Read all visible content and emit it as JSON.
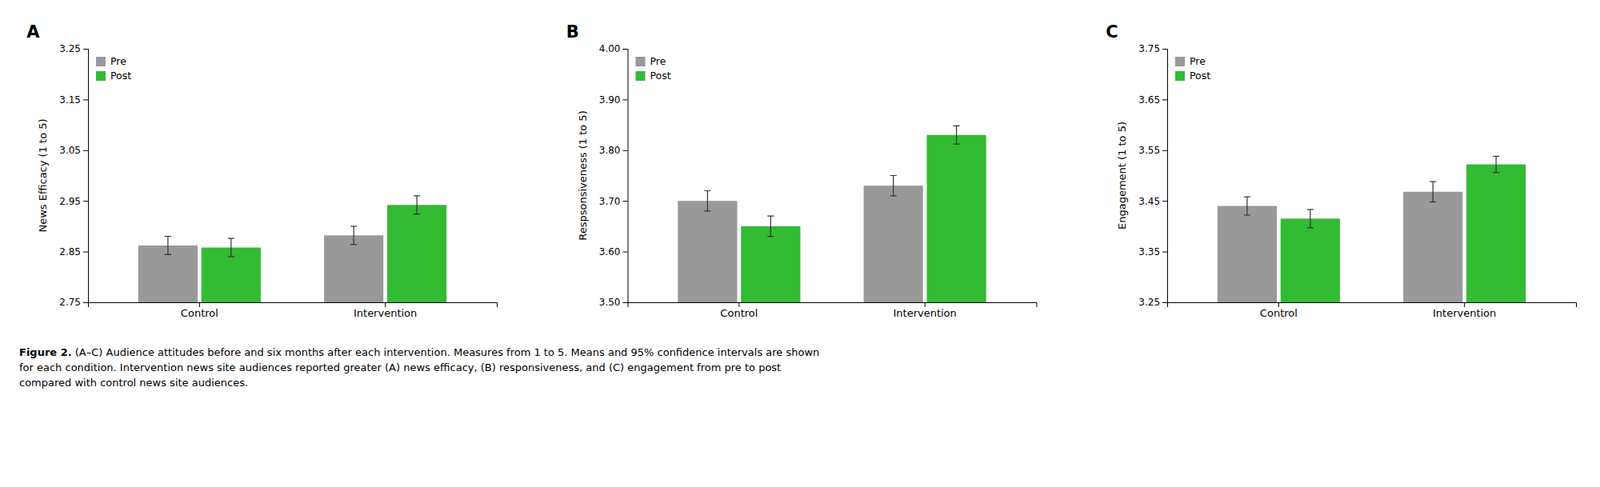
{
  "chart_data": [
    {
      "type": "bar",
      "title": "A",
      "ylabel": "News Efficacy (1 to 5)",
      "categories": [
        "Control",
        "Intervention"
      ],
      "series": [
        {
          "name": "Pre",
          "color": "#999999",
          "values": [
            2.862,
            2.882
          ],
          "errors": [
            0.018,
            0.018
          ]
        },
        {
          "name": "Post",
          "color": "#33bb33",
          "values": [
            2.858,
            2.942
          ],
          "errors": [
            0.018,
            0.018
          ]
        }
      ],
      "ylim": [
        2.75,
        3.25
      ],
      "yticks": [
        2.75,
        2.85,
        2.95,
        3.05,
        3.15,
        3.25
      ],
      "legend": "upper left",
      "grid": false
    },
    {
      "type": "bar",
      "title": "B",
      "ylabel": "Respsonsiveness (1 to 5)",
      "categories": [
        "Control",
        "Intervention"
      ],
      "series": [
        {
          "name": "Pre",
          "color": "#999999",
          "values": [
            3.7,
            3.73
          ],
          "errors": [
            0.02,
            0.02
          ]
        },
        {
          "name": "Post",
          "color": "#33bb33",
          "values": [
            3.65,
            3.83
          ],
          "errors": [
            0.02,
            0.018
          ]
        }
      ],
      "ylim": [
        3.5,
        4.0
      ],
      "yticks": [
        {
          "value": 3.5,
          "label": "3.50"
        },
        {
          "value": 3.6,
          "label": "3.60"
        },
        {
          "value": 3.7,
          "label": "3.70"
        },
        {
          "value": 3.8,
          "label": "3.80"
        },
        {
          "value": 3.9,
          "label": "3.90"
        },
        {
          "value": 4,
          "label": "4.00"
        }
      ],
      "legend": "upper left",
      "grid": false
    },
    {
      "type": "bar",
      "title": "C",
      "ylabel": "Engagement (1 to 5)",
      "categories": [
        "Control",
        "Intervention"
      ],
      "series": [
        {
          "name": "Pre",
          "color": "#999999",
          "values": [
            3.44,
            3.468
          ],
          "errors": [
            0.018,
            0.02
          ]
        },
        {
          "name": "Post",
          "color": "#33bb33",
          "values": [
            3.415,
            3.522
          ],
          "errors": [
            0.018,
            0.016
          ]
        }
      ],
      "ylim": [
        3.25,
        3.75
      ],
      "yticks": [
        3.25,
        3.35,
        3.45,
        3.55,
        3.65,
        3.75
      ],
      "legend": "upper left",
      "grid": false
    }
  ],
  "caption": {
    "label": "Figure 2.",
    "text": " (A–C) Audience attitudes before and six months after each intervention. Measures from 1 to 5. Means and 95% confidence intervals are shown\nfor each condition. Intervention news site audiences reported greater (A) news efficacy, (B) responsiveness, and (C) engagement from pre to post\ncompared with control news site audiences."
  }
}
